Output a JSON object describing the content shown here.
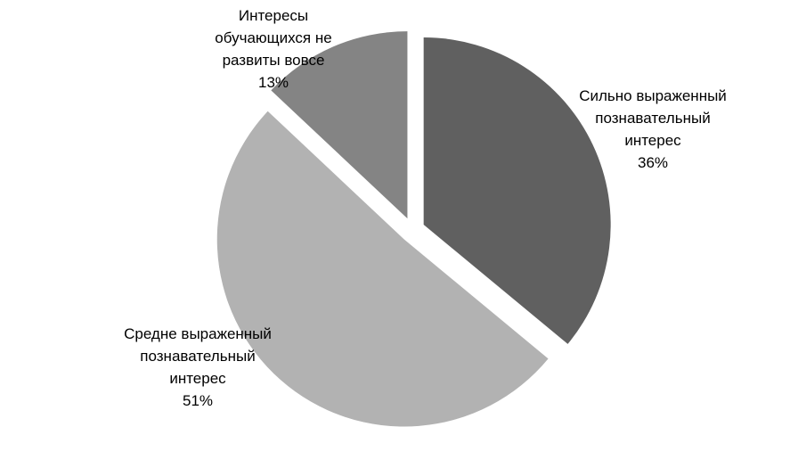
{
  "chart_data": {
    "type": "pie",
    "categories": [
      "Сильно выраженный познавательный интерес",
      "Средне выраженный познавательный интерес",
      "Интересы обучающихся не развиты вовсе"
    ],
    "values": [
      36,
      51,
      13
    ],
    "value_labels": [
      "36%",
      "51%",
      "13%"
    ],
    "colors": [
      "#606060",
      "#b2b2b2",
      "#848484"
    ]
  }
}
